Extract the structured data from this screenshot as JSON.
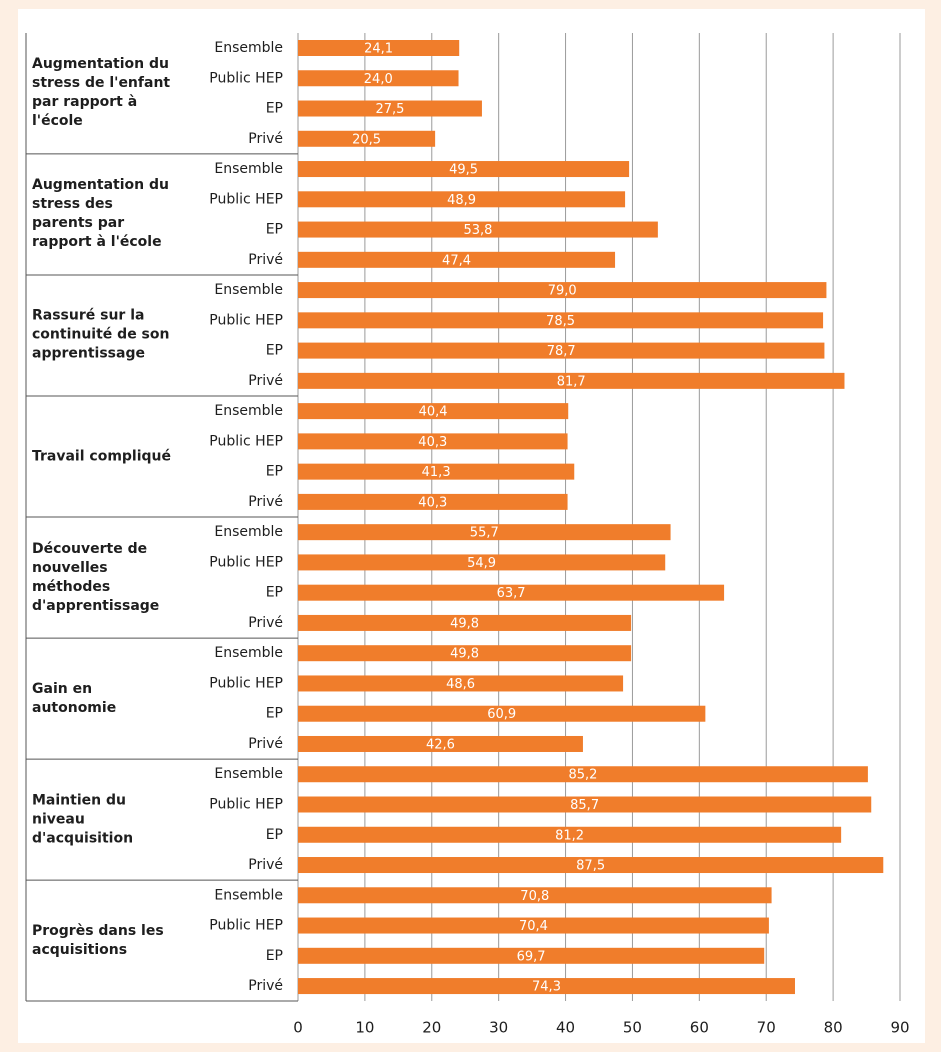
{
  "chart_data": {
    "type": "bar",
    "categories": [
      "Ensemble",
      "Public HEP",
      "EP",
      "Privé"
    ],
    "groups": [
      {
        "name": "Augmentation du stress de l'enfant par rapport à l'école",
        "values": [
          24.1,
          24.0,
          27.5,
          20.5
        ],
        "value_labels": [
          "24,1",
          "24,0",
          "27,5",
          "20,5"
        ]
      },
      {
        "name": "Augmentation du stress des parents par rapport à l'école",
        "values": [
          49.5,
          48.9,
          53.8,
          47.4
        ],
        "value_labels": [
          "49,5",
          "48,9",
          "53,8",
          "47,4"
        ]
      },
      {
        "name": "Rassuré sur la continuité de son apprentissage",
        "values": [
          79.0,
          78.5,
          78.7,
          81.7
        ],
        "value_labels": [
          "79,0",
          "78,5",
          "78,7",
          "81,7"
        ]
      },
      {
        "name": "Travail compliqué",
        "values": [
          40.4,
          40.3,
          41.3,
          40.3
        ],
        "value_labels": [
          "40,4",
          "40,3",
          "41,3",
          "40,3"
        ]
      },
      {
        "name": "Découverte de nouvelles méthodes d'apprentissage",
        "values": [
          55.7,
          54.9,
          63.7,
          49.8
        ],
        "value_labels": [
          "55,7",
          "54,9",
          "63,7",
          "49,8"
        ]
      },
      {
        "name": "Gain en autonomie",
        "values": [
          49.8,
          48.6,
          60.9,
          42.6
        ],
        "value_labels": [
          "49,8",
          "48,6",
          "60,9",
          "42,6"
        ]
      },
      {
        "name": "Maintien du niveau d'acquisition",
        "values": [
          85.2,
          85.7,
          81.2,
          87.5
        ],
        "value_labels": [
          "85,2",
          "85,7",
          "81,2",
          "87,5"
        ]
      },
      {
        "name": "Progrès dans les acquisitions",
        "values": [
          70.8,
          70.4,
          69.7,
          74.3
        ],
        "value_labels": [
          "70,8",
          "70,4",
          "69,7",
          "74,3"
        ]
      }
    ],
    "color": "#f07d2b",
    "xlim": [
      0,
      90
    ],
    "xticks": [
      0,
      10,
      20,
      30,
      40,
      50,
      60,
      70,
      80,
      90
    ],
    "grid": true
  }
}
